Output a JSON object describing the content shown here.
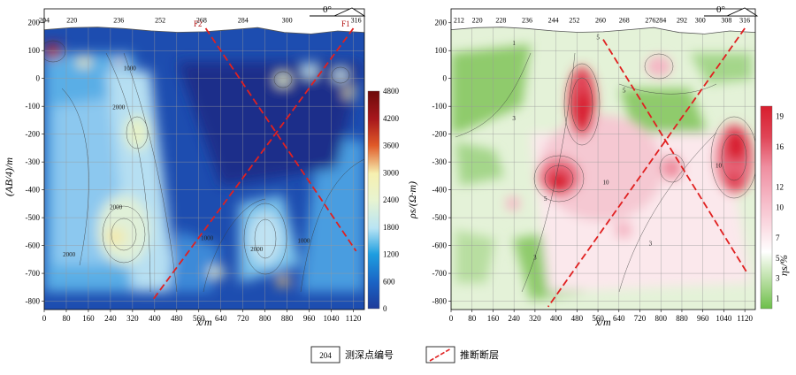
{
  "chart_data": [
    {
      "type": "heatmap",
      "xlabel": "x/m",
      "ylabel": "(AB/4)/m",
      "x_ticks": [
        0,
        80,
        160,
        240,
        320,
        400,
        480,
        560,
        640,
        720,
        800,
        880,
        960,
        1040,
        1120
      ],
      "y_ticks": [
        200,
        100,
        0,
        -100,
        -200,
        -300,
        -400,
        -500,
        -600,
        -700,
        -800
      ],
      "xlim": [
        0,
        1160
      ],
      "ylim": [
        -830,
        250
      ],
      "grid": true,
      "stations": [
        "204",
        "220",
        "236",
        "252",
        "268",
        "284",
        "300",
        "316"
      ],
      "station_x": [
        0,
        100,
        270,
        420,
        570,
        720,
        880,
        1130
      ],
      "faults": [
        {
          "name": "F2",
          "points": [
            [
              585,
              180
            ],
            [
              1130,
              -620
            ]
          ]
        },
        {
          "name": "F1",
          "points": [
            [
              1120,
              180
            ],
            [
              390,
              -800
            ]
          ]
        }
      ],
      "contour_labels": [
        {
          "text": "1000",
          "x": 310,
          "y": 30
        },
        {
          "text": "2000",
          "x": 270,
          "y": -110
        },
        {
          "text": "2000",
          "x": 260,
          "y": -470
        },
        {
          "text": "2000",
          "x": 90,
          "y": -640
        },
        {
          "text": "1000",
          "x": 590,
          "y": -580
        },
        {
          "text": "2000",
          "x": 770,
          "y": -620
        },
        {
          "text": "1000",
          "x": 940,
          "y": -590
        }
      ],
      "colorbar": {
        "label": "ρs/(Ω·m)",
        "ticks": [
          4800,
          4200,
          3600,
          3000,
          2400,
          1800,
          1200,
          600,
          0
        ],
        "range": [
          0,
          4800
        ],
        "colors": [
          "#1e3b9a",
          "#1b63c4",
          "#1e9ee0",
          "#7cc8ee",
          "#b8e4f4",
          "#e8f4d0",
          "#f6f0b0",
          "#f2c270",
          "#e05a28",
          "#a8181c",
          "#6d0a0a"
        ]
      },
      "north": "0°"
    },
    {
      "type": "heatmap",
      "xlabel": "x/m",
      "ylabel": "",
      "x_ticks": [
        0,
        80,
        160,
        240,
        320,
        400,
        480,
        560,
        640,
        720,
        800,
        880,
        960,
        1040,
        1120
      ],
      "y_ticks": [
        200,
        100,
        0,
        -100,
        -200,
        -300,
        -400,
        -500,
        -600,
        -700,
        -800
      ],
      "xlim": [
        0,
        1160
      ],
      "ylim": [
        -830,
        250
      ],
      "grid": true,
      "stations": [
        "212",
        "220",
        "228",
        "236",
        "244",
        "252",
        "260",
        "268",
        "276",
        "284",
        "292",
        "300",
        "308",
        "316"
      ],
      "station_x": [
        30,
        100,
        190,
        290,
        390,
        470,
        570,
        660,
        760,
        800,
        880,
        950,
        1050,
        1120
      ],
      "faults": [
        {
          "name": "",
          "points": [
            [
              580,
              140
            ],
            [
              1130,
              -700
            ]
          ]
        },
        {
          "name": "",
          "points": [
            [
              1120,
              180
            ],
            [
              370,
              -820
            ]
          ]
        }
      ],
      "contour_labels": [
        {
          "text": "5",
          "x": 560,
          "y": 140
        },
        {
          "text": "1",
          "x": 240,
          "y": 120
        },
        {
          "text": "3",
          "x": 240,
          "y": -150
        },
        {
          "text": "5",
          "x": 660,
          "y": -50
        },
        {
          "text": "10",
          "x": 590,
          "y": -380
        },
        {
          "text": "10",
          "x": 1020,
          "y": -320
        },
        {
          "text": "5",
          "x": 360,
          "y": -440
        },
        {
          "text": "3",
          "x": 320,
          "y": -650
        },
        {
          "text": "3",
          "x": 760,
          "y": -600
        }
      ],
      "colorbar": {
        "label": "ηs/%",
        "ticks": [
          19,
          16,
          12,
          10,
          7,
          5,
          3,
          1
        ],
        "range": [
          0,
          20
        ],
        "colors": [
          "#6cbf4a",
          "#a4d68a",
          "#d6ecc8",
          "#ffffff",
          "#fbdde4",
          "#f5b6c4",
          "#ef8ea0",
          "#e8677c",
          "#e04456",
          "#d81e2e"
        ]
      },
      "north": "0°"
    }
  ],
  "legend": [
    {
      "symbol_text": "204",
      "label": "测深点编号"
    },
    {
      "label": "推断断层"
    }
  ]
}
